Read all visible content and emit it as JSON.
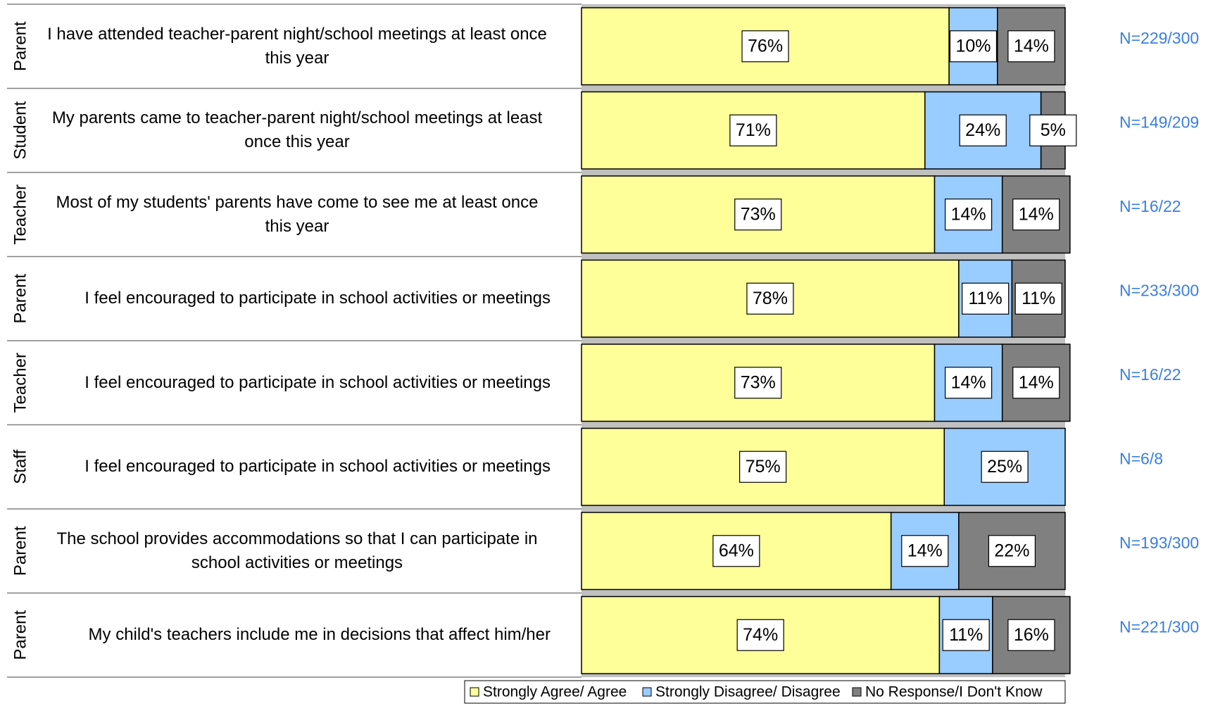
{
  "chart_data": {
    "type": "bar",
    "orientation": "horizontal",
    "stacked": true,
    "groups": [
      "Parent",
      "Student",
      "Teacher",
      "Parent",
      "Teacher",
      "Staff",
      "Parent",
      "Parent"
    ],
    "categories": [
      "I have attended teacher-parent night/school meetings at least once this year",
      "My parents came to teacher-parent night/school meetings at least once this year",
      "Most of my students' parents have come to see me at least once this year",
      "I feel encouraged to participate in school activities or meetings",
      "I feel encouraged to participate in school activities or meetings",
      "I feel encouraged to participate in school activities or meetings",
      "The school provides accommodations so that I can participate in school activities or meetings",
      "My child's teachers include me in decisions that affect him/her"
    ],
    "n_labels": [
      "N=229/300",
      "N=149/209",
      "N=16/22",
      "N=233/300",
      "N=16/22",
      "N=6/8",
      "N=193/300",
      "N=221/300"
    ],
    "xlim": [
      0,
      100
    ],
    "series": [
      {
        "name": "Strongly Agree/ Agree",
        "color": "#ffff99",
        "values": [
          76,
          71,
          73,
          78,
          73,
          75,
          64,
          74
        ],
        "value_labels": [
          "76%",
          "71%",
          "73%",
          "78%",
          "73%",
          "75%",
          "64%",
          "74%"
        ]
      },
      {
        "name": "Strongly Disagree/ Disagree",
        "color": "#99ccff",
        "values": [
          10,
          24,
          14,
          11,
          14,
          25,
          14,
          11
        ],
        "value_labels": [
          "10%",
          "24%",
          "14%",
          "11%",
          "14%",
          "25%",
          "14%",
          "11%"
        ]
      },
      {
        "name": "No Response/I Don't Know",
        "color": "#808080",
        "values": [
          14,
          5,
          14,
          11,
          14,
          0,
          22,
          16
        ],
        "value_labels": [
          "14%",
          "5%",
          "14%",
          "11%",
          "14%",
          null,
          "22%",
          "16%"
        ]
      }
    ],
    "n_color": "#3a7ee0"
  }
}
